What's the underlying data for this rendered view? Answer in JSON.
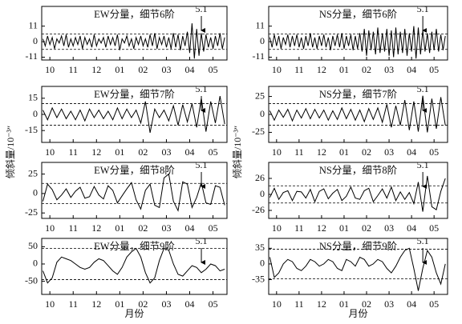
{
  "chart_data": [
    {
      "type": "line",
      "title": "EW分量，细节6阶",
      "annotation": {
        "text": "5.1",
        "x": 6.5
      },
      "thresholds": [
        -5.5,
        5.5
      ],
      "ylim": [
        -13,
        25
      ],
      "yticks": [
        -11,
        0,
        11
      ],
      "xlim": [
        -0.35,
        7.6
      ],
      "xticks": [
        {
          "value": 0,
          "label": "10"
        },
        {
          "value": 1,
          "label": "11"
        },
        {
          "value": 2,
          "label": "12"
        },
        {
          "value": 3,
          "label": "01"
        },
        {
          "value": 4,
          "label": "02"
        },
        {
          "value": 5,
          "label": "03"
        },
        {
          "value": 6,
          "label": "04"
        },
        {
          "value": 7,
          "label": "05"
        }
      ],
      "x": [
        -0.3,
        -0.2,
        -0.1,
        0,
        0.1,
        0.2,
        0.3,
        0.4,
        0.5,
        0.6,
        0.7,
        0.8,
        0.9,
        1,
        1.1,
        1.2,
        1.3,
        1.4,
        1.5,
        1.6,
        1.7,
        1.8,
        1.9,
        2,
        2.1,
        2.2,
        2.3,
        2.4,
        2.5,
        2.6,
        2.7,
        2.8,
        2.9,
        3,
        3.1,
        3.2,
        3.3,
        3.4,
        3.5,
        3.6,
        3.7,
        3.8,
        3.9,
        4,
        4.1,
        4.2,
        4.3,
        4.4,
        4.5,
        4.6,
        4.7,
        4.8,
        4.9,
        5,
        5.1,
        5.2,
        5.3,
        5.4,
        5.5,
        5.6,
        5.7,
        5.8,
        5.9,
        6,
        6.1,
        6.2,
        6.3,
        6.4,
        6.5,
        6.6,
        6.7,
        6.8,
        6.9,
        7,
        7.1,
        7.2,
        7.3,
        7.4,
        7.5
      ],
      "values": [
        2,
        -3,
        4,
        -2,
        3,
        -5,
        2,
        -1,
        4,
        -3,
        5,
        -4,
        2,
        -3,
        3,
        -2,
        4,
        -5,
        3,
        -2,
        2,
        -4,
        5,
        -3,
        2,
        -1,
        3,
        -4,
        4,
        -2,
        3,
        -3,
        5,
        -6,
        2,
        -1,
        4,
        -3,
        2,
        -5,
        3,
        -2,
        4,
        -3,
        2,
        -4,
        5,
        -3,
        6,
        -5,
        3,
        -2,
        4,
        -4,
        3,
        -5,
        6,
        -4,
        5,
        -6,
        4,
        -3,
        7,
        -8,
        13,
        -12,
        9,
        -10,
        6,
        -7,
        5,
        -4,
        3,
        -5,
        4,
        -3,
        6,
        -5,
        3
      ]
    },
    {
      "type": "line",
      "title": "NS分量，细节6阶",
      "annotation": {
        "text": "5.1",
        "x": 6.5
      },
      "thresholds": [
        -5.5,
        5.5
      ],
      "ylim": [
        -13,
        25
      ],
      "yticks": [
        -11,
        0,
        11
      ],
      "xlim": [
        -0.35,
        7.6
      ],
      "xticks": [
        {
          "value": 0,
          "label": "10"
        },
        {
          "value": 1,
          "label": "11"
        },
        {
          "value": 2,
          "label": "12"
        },
        {
          "value": 3,
          "label": "01"
        },
        {
          "value": 4,
          "label": "02"
        },
        {
          "value": 5,
          "label": "03"
        },
        {
          "value": 6,
          "label": "04"
        },
        {
          "value": 7,
          "label": "05"
        }
      ],
      "x": [
        -0.3,
        -0.2,
        -0.1,
        0,
        0.1,
        0.2,
        0.3,
        0.4,
        0.5,
        0.6,
        0.7,
        0.8,
        0.9,
        1,
        1.1,
        1.2,
        1.3,
        1.4,
        1.5,
        1.6,
        1.7,
        1.8,
        1.9,
        2,
        2.1,
        2.2,
        2.3,
        2.4,
        2.5,
        2.6,
        2.7,
        2.8,
        2.9,
        3,
        3.1,
        3.2,
        3.3,
        3.4,
        3.5,
        3.6,
        3.7,
        3.8,
        3.9,
        4,
        4.1,
        4.2,
        4.3,
        4.4,
        4.5,
        4.6,
        4.7,
        4.8,
        4.9,
        5,
        5.1,
        5.2,
        5.3,
        5.4,
        5.5,
        5.6,
        5.7,
        5.8,
        5.9,
        6,
        6.1,
        6.2,
        6.3,
        6.4,
        6.5,
        6.6,
        6.7,
        6.8,
        6.9,
        7,
        7.1,
        7.2,
        7.3,
        7.4,
        7.5
      ],
      "values": [
        3,
        -4,
        5,
        -3,
        4,
        -5,
        3,
        -2,
        5,
        -4,
        4,
        -3,
        5,
        -4,
        3,
        -5,
        4,
        -3,
        6,
        -4,
        3,
        -5,
        4,
        -3,
        5,
        -4,
        3,
        -6,
        4,
        -3,
        5,
        -4,
        6,
        -5,
        4,
        -3,
        5,
        -6,
        4,
        -5,
        6,
        -7,
        9,
        -10,
        8,
        -6,
        7,
        -9,
        10,
        -8,
        6,
        -7,
        9,
        -10,
        8,
        -11,
        10,
        -9,
        7,
        -8,
        9,
        -10,
        6,
        -7,
        11,
        -12,
        10,
        -9,
        8,
        -7,
        6,
        -8,
        7,
        -6,
        9,
        -7,
        5,
        -6,
        4
      ]
    },
    {
      "type": "line",
      "title": "EW分量，细节7阶",
      "annotation": {
        "text": "5.1",
        "x": 6.5
      },
      "thresholds": [
        -10,
        10
      ],
      "ylim": [
        -26,
        26
      ],
      "yticks": [
        -15,
        0,
        15
      ],
      "xlim": [
        -0.35,
        7.6
      ],
      "ylabel": "倾斜量/10⁻³″",
      "xticks": [
        {
          "value": 0,
          "label": "10"
        },
        {
          "value": 1,
          "label": "11"
        },
        {
          "value": 2,
          "label": "12"
        },
        {
          "value": 3,
          "label": "01"
        },
        {
          "value": 4,
          "label": "02"
        },
        {
          "value": 5,
          "label": "03"
        },
        {
          "value": 6,
          "label": "04"
        },
        {
          "value": 7,
          "label": "05"
        }
      ],
      "x": [
        -0.3,
        -0.1,
        0.1,
        0.3,
        0.5,
        0.7,
        0.9,
        1.1,
        1.3,
        1.5,
        1.7,
        1.9,
        2.1,
        2.3,
        2.5,
        2.7,
        2.9,
        3.1,
        3.3,
        3.5,
        3.7,
        3.9,
        4.1,
        4.3,
        4.5,
        4.7,
        4.9,
        5.1,
        5.3,
        5.5,
        5.7,
        5.9,
        6.1,
        6.3,
        6.5,
        6.7,
        6.9,
        7.1,
        7.3,
        7.5
      ],
      "values": [
        4,
        -5,
        6,
        -3,
        5,
        -4,
        3,
        -5,
        4,
        -6,
        5,
        -3,
        4,
        -4,
        3,
        -5,
        6,
        -4,
        5,
        -3,
        4,
        -8,
        12,
        -17,
        5,
        -3,
        4,
        -6,
        8,
        -10,
        9,
        -7,
        10,
        -12,
        15,
        -16,
        12,
        -8,
        17,
        -9
      ]
    },
    {
      "type": "line",
      "title": "NS分量，细节7阶",
      "annotation": {
        "text": "5.1",
        "x": 6.5
      },
      "thresholds": [
        -15,
        15
      ],
      "ylim": [
        -39,
        39
      ],
      "yticks": [
        -25,
        0,
        25
      ],
      "xlim": [
        -0.35,
        7.6
      ],
      "ylabel": "倾斜量/10⁻³″",
      "xticks": [
        {
          "value": 0,
          "label": "10"
        },
        {
          "value": 1,
          "label": "11"
        },
        {
          "value": 2,
          "label": "12"
        },
        {
          "value": 3,
          "label": "01"
        },
        {
          "value": 4,
          "label": "02"
        },
        {
          "value": 5,
          "label": "03"
        },
        {
          "value": 6,
          "label": "04"
        },
        {
          "value": 7,
          "label": "05"
        }
      ],
      "x": [
        -0.3,
        -0.1,
        0.1,
        0.3,
        0.5,
        0.7,
        0.9,
        1.1,
        1.3,
        1.5,
        1.7,
        1.9,
        2.1,
        2.3,
        2.5,
        2.7,
        2.9,
        3.1,
        3.3,
        3.5,
        3.7,
        3.9,
        4.1,
        4.3,
        4.5,
        4.7,
        4.9,
        5.1,
        5.3,
        5.5,
        5.7,
        5.9,
        6.1,
        6.3,
        6.5,
        6.7,
        6.9,
        7.1,
        7.3,
        7.5
      ],
      "values": [
        5,
        -8,
        6,
        -4,
        7,
        -9,
        6,
        -5,
        8,
        -6,
        7,
        -5,
        6,
        -8,
        5,
        -7,
        9,
        -6,
        7,
        -8,
        6,
        -10,
        8,
        -7,
        9,
        -11,
        14,
        -18,
        12,
        -15,
        20,
        -22,
        18,
        -24,
        26,
        -25,
        22,
        -20,
        24,
        -15
      ]
    },
    {
      "type": "line",
      "title": "EW分量，细节8阶",
      "annotation": {
        "text": "5.1",
        "x": 6.5
      },
      "thresholds": [
        -13,
        13
      ],
      "ylim": [
        -32,
        40
      ],
      "yticks": [
        -25,
        0,
        25
      ],
      "xlim": [
        -0.35,
        7.6
      ],
      "xticks": [
        {
          "value": 0,
          "label": "10"
        },
        {
          "value": 1,
          "label": "11"
        },
        {
          "value": 2,
          "label": "12"
        },
        {
          "value": 3,
          "label": "01"
        },
        {
          "value": 4,
          "label": "02"
        },
        {
          "value": 5,
          "label": "03"
        },
        {
          "value": 6,
          "label": "04"
        },
        {
          "value": 7,
          "label": "05"
        }
      ],
      "x": [
        -0.3,
        -0.1,
        0.1,
        0.3,
        0.5,
        0.7,
        0.9,
        1.1,
        1.3,
        1.5,
        1.7,
        1.9,
        2.1,
        2.3,
        2.5,
        2.7,
        2.9,
        3.1,
        3.3,
        3.5,
        3.7,
        3.9,
        4.1,
        4.3,
        4.5,
        4.7,
        4.9,
        5.1,
        5.3,
        5.5,
        5.7,
        5.9,
        6.1,
        6.3,
        6.5,
        6.7,
        6.9,
        7.1,
        7.3,
        7.5
      ],
      "values": [
        -10,
        12,
        5,
        -8,
        -2,
        6,
        -5,
        3,
        8,
        -6,
        -4,
        9,
        -2,
        -7,
        10,
        4,
        -12,
        -3,
        6,
        14,
        -8,
        -20,
        4,
        12,
        -15,
        -18,
        20,
        25,
        -10,
        -22,
        15,
        12,
        -18,
        -5,
        14,
        -12,
        -14,
        10,
        8,
        -15
      ]
    },
    {
      "type": "line",
      "title": "NS分量，细节8阶",
      "annotation": {
        "text": "5.1",
        "x": 6.5
      },
      "thresholds": [
        -14,
        14
      ],
      "ylim": [
        -39,
        52
      ],
      "yticks": [
        -26,
        0,
        26
      ],
      "xlim": [
        -0.35,
        7.6
      ],
      "xticks": [
        {
          "value": 0,
          "label": "10"
        },
        {
          "value": 1,
          "label": "11"
        },
        {
          "value": 2,
          "label": "12"
        },
        {
          "value": 3,
          "label": "01"
        },
        {
          "value": 4,
          "label": "02"
        },
        {
          "value": 5,
          "label": "03"
        },
        {
          "value": 6,
          "label": "04"
        },
        {
          "value": 7,
          "label": "05"
        }
      ],
      "x": [
        -0.3,
        -0.1,
        0.1,
        0.3,
        0.5,
        0.7,
        0.9,
        1.1,
        1.3,
        1.5,
        1.7,
        1.9,
        2.1,
        2.3,
        2.5,
        2.7,
        2.9,
        3.1,
        3.3,
        3.5,
        3.7,
        3.9,
        4.1,
        4.3,
        4.5,
        4.7,
        4.9,
        5.1,
        5.3,
        5.5,
        5.7,
        5.9,
        6.1,
        6.3,
        6.5,
        6.7,
        6.9,
        7.1,
        7.3,
        7.5
      ],
      "values": [
        -5,
        10,
        -8,
        3,
        6,
        -10,
        5,
        4,
        -6,
        8,
        -12,
        5,
        9,
        -7,
        2,
        8,
        -10,
        -3,
        12,
        -6,
        -8,
        6,
        10,
        -12,
        -2,
        9,
        -6,
        12,
        -10,
        4,
        -8,
        3,
        -15,
        20,
        -28,
        30,
        -20,
        -25,
        5,
        26
      ]
    },
    {
      "type": "line",
      "title": "EW分量，细节9阶",
      "annotation": {
        "text": "5.1",
        "x": 6.5
      },
      "thresholds": [
        -45,
        45
      ],
      "ylim": [
        -88,
        74
      ],
      "yticks": [
        -50,
        0,
        50
      ],
      "xlim": [
        -0.35,
        7.6
      ],
      "xlabel": "月份",
      "xticks": [
        {
          "value": 0,
          "label": "10"
        },
        {
          "value": 1,
          "label": "11"
        },
        {
          "value": 2,
          "label": "12"
        },
        {
          "value": 3,
          "label": "01"
        },
        {
          "value": 4,
          "label": "02"
        },
        {
          "value": 5,
          "label": "03"
        },
        {
          "value": 6,
          "label": "04"
        },
        {
          "value": 7,
          "label": "05"
        }
      ],
      "x": [
        -0.3,
        -0.1,
        0.1,
        0.3,
        0.5,
        0.7,
        0.9,
        1.1,
        1.3,
        1.5,
        1.7,
        1.9,
        2.1,
        2.3,
        2.5,
        2.7,
        2.9,
        3.1,
        3.3,
        3.5,
        3.7,
        3.9,
        4.1,
        4.3,
        4.5,
        4.7,
        4.9,
        5.1,
        5.3,
        5.5,
        5.7,
        5.9,
        6.1,
        6.3,
        6.5,
        6.7,
        6.9,
        7.1,
        7.3,
        7.5
      ],
      "values": [
        -20,
        -55,
        -40,
        5,
        20,
        15,
        10,
        0,
        -10,
        -15,
        -10,
        5,
        15,
        10,
        -5,
        -20,
        -30,
        -10,
        20,
        35,
        45,
        20,
        -25,
        -55,
        -40,
        10,
        45,
        40,
        0,
        -30,
        -35,
        -20,
        -5,
        -10,
        -25,
        -15,
        0,
        -5,
        -20,
        -15
      ]
    },
    {
      "type": "line",
      "title": "NS分量，细节9阶",
      "annotation": {
        "text": "5.1",
        "x": 6.5
      },
      "thresholds": [
        -33,
        33
      ],
      "ylim": [
        -68,
        57
      ],
      "yticks": [
        -35,
        0,
        35
      ],
      "xlim": [
        -0.35,
        7.6
      ],
      "xlabel": "月份",
      "xticks": [
        {
          "value": 0,
          "label": "10"
        },
        {
          "value": 1,
          "label": "11"
        },
        {
          "value": 2,
          "label": "12"
        },
        {
          "value": 3,
          "label": "01"
        },
        {
          "value": 4,
          "label": "02"
        },
        {
          "value": 5,
          "label": "03"
        },
        {
          "value": 6,
          "label": "04"
        },
        {
          "value": 7,
          "label": "05"
        }
      ],
      "x": [
        -0.3,
        -0.1,
        0.1,
        0.3,
        0.5,
        0.7,
        0.9,
        1.1,
        1.3,
        1.5,
        1.7,
        1.9,
        2.1,
        2.3,
        2.5,
        2.7,
        2.9,
        3.1,
        3.3,
        3.5,
        3.7,
        3.9,
        4.1,
        4.3,
        4.5,
        4.7,
        4.9,
        5.1,
        5.3,
        5.5,
        5.7,
        5.9,
        6.1,
        6.3,
        6.5,
        6.7,
        6.9,
        7.1,
        7.3,
        7.5
      ],
      "values": [
        15,
        -30,
        -20,
        0,
        10,
        5,
        -10,
        -15,
        -5,
        10,
        5,
        -5,
        0,
        10,
        5,
        -10,
        -15,
        10,
        5,
        -5,
        15,
        10,
        -5,
        0,
        10,
        5,
        -10,
        -20,
        -5,
        15,
        30,
        35,
        -10,
        -60,
        -10,
        30,
        15,
        -20,
        -45,
        0
      ]
    }
  ]
}
